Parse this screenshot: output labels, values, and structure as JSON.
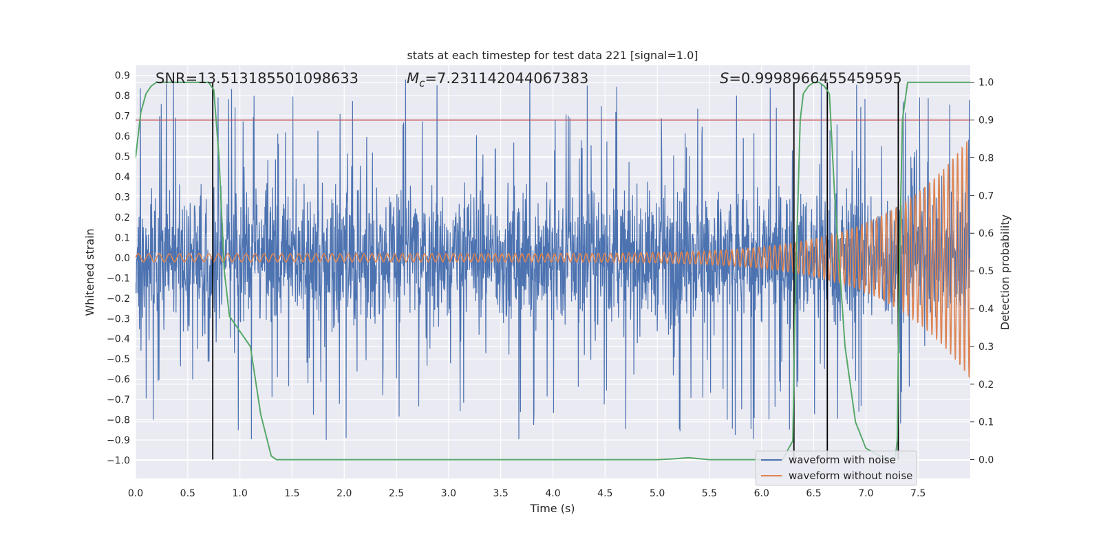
{
  "chart_data": {
    "type": "line",
    "title": "stats at each timestep for test data 221 [signal=1.0]",
    "xlabel": "Time (s)",
    "ylabel": "Whitened strain",
    "y2label": "Detection probability",
    "xlim": [
      0.0,
      8.0
    ],
    "ylim": [
      -1.09,
      0.95
    ],
    "y2lim": [
      -0.05,
      1.045
    ],
    "x_ticks": [
      "0.0",
      "0.5",
      "1.0",
      "1.5",
      "2.0",
      "2.5",
      "3.0",
      "3.5",
      "4.0",
      "4.5",
      "5.0",
      "5.5",
      "6.0",
      "6.5",
      "7.0",
      "7.5"
    ],
    "y_ticks": [
      "0.9",
      "0.8",
      "0.7",
      "0.6",
      "0.5",
      "0.4",
      "0.3",
      "0.2",
      "0.1",
      "0.0",
      "−0.1",
      "−0.2",
      "−0.3",
      "−0.4",
      "−0.5",
      "−0.6",
      "−0.7",
      "−0.8",
      "−0.9",
      "−1.0"
    ],
    "y2_ticks": [
      "1.0",
      "0.9",
      "0.8",
      "0.7",
      "0.6",
      "0.5",
      "0.4",
      "0.3",
      "0.2",
      "0.1",
      "0.0"
    ],
    "annotations": {
      "snr": "SNR=13.513185501098633",
      "mc_symbol": "M",
      "mc_sub": "c",
      "mc_value": "=7.231142044067383",
      "s_symbol": "S",
      "s_value": "=0.9998966455459595"
    },
    "threshold": {
      "value": 0.9,
      "color": "#c44e52"
    },
    "markers_x": [
      0.74,
      6.31,
      6.63,
      7.31
    ],
    "series": [
      {
        "name": "waveform with noise",
        "color": "#4c72b0",
        "envelope": 0.3
      },
      {
        "name": "waveform without noise",
        "color": "#dd8452",
        "amplitude_start": 0.02,
        "amplitude_end": 0.6,
        "cycles": 130
      },
      {
        "color": "#55a868",
        "axis": "right",
        "x": [
          0.0,
          0.05,
          0.1,
          0.15,
          0.2,
          0.3,
          0.4,
          0.5,
          0.6,
          0.7,
          0.75,
          0.8,
          0.85,
          0.9,
          1.0,
          1.1,
          1.2,
          1.3,
          1.35,
          1.4,
          1.5,
          2.0,
          3.0,
          4.0,
          5.0,
          5.15,
          5.3,
          5.5,
          6.0,
          6.2,
          6.3,
          6.32,
          6.35,
          6.37,
          6.4,
          6.45,
          6.5,
          6.55,
          6.6,
          6.65,
          6.7,
          6.8,
          6.9,
          7.0,
          7.2,
          7.28,
          7.3,
          7.32,
          7.35,
          7.4,
          7.5,
          8.0
        ],
        "y": [
          0.8,
          0.92,
          0.97,
          0.99,
          1.0,
          1.0,
          1.0,
          1.0,
          1.0,
          1.0,
          0.98,
          0.8,
          0.5,
          0.38,
          0.34,
          0.3,
          0.12,
          0.01,
          0.0,
          0.0,
          0.0,
          0.0,
          0.0,
          0.0,
          0.0,
          0.002,
          0.005,
          0.0,
          0.0,
          0.0,
          0.05,
          0.4,
          0.7,
          0.9,
          0.97,
          0.99,
          1.0,
          1.0,
          0.99,
          0.97,
          0.7,
          0.3,
          0.1,
          0.03,
          0.0,
          0.0,
          0.05,
          0.5,
          0.9,
          1.0,
          1.0,
          1.0
        ]
      }
    ],
    "legend": [
      "waveform with noise",
      "waveform without noise"
    ],
    "legend_loc": "lower-right",
    "grid": true
  }
}
